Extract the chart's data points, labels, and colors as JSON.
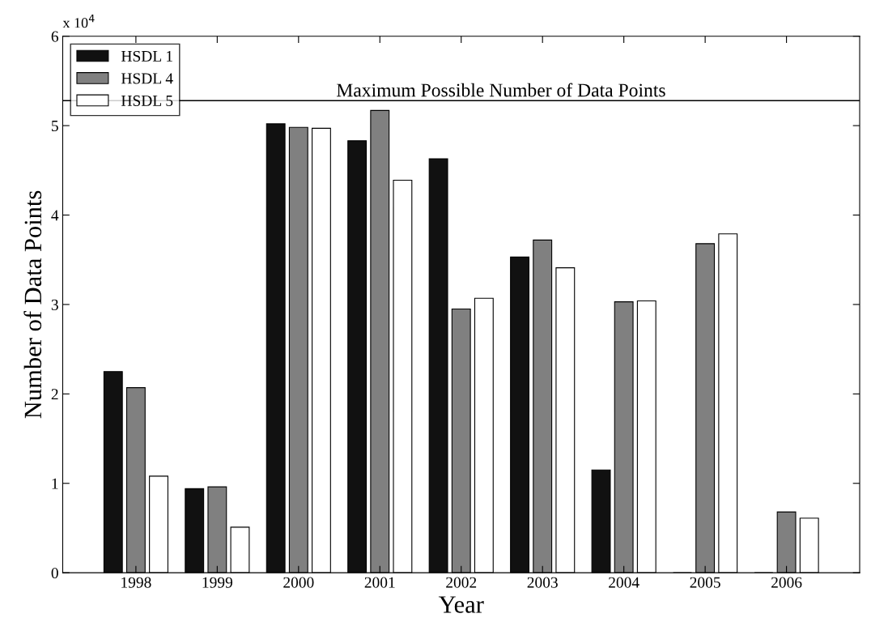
{
  "chart_data": {
    "type": "bar",
    "xlabel": "Year",
    "ylabel": "Number of Data Points",
    "categories": [
      "1998",
      "1999",
      "2000",
      "2001",
      "2002",
      "2003",
      "2004",
      "2005",
      "2006"
    ],
    "series": [
      {
        "name": "HSDL 1",
        "color": "#111111",
        "values": [
          2.25,
          0.94,
          5.02,
          4.83,
          4.63,
          3.53,
          1.15,
          0,
          0
        ]
      },
      {
        "name": "HSDL 4",
        "color": "#808080",
        "values": [
          2.07,
          0.96,
          4.98,
          5.17,
          2.95,
          3.72,
          3.03,
          3.68,
          0.68
        ]
      },
      {
        "name": "HSDL 5",
        "color": "#ffffff",
        "values": [
          1.08,
          0.51,
          4.97,
          4.39,
          3.07,
          3.41,
          3.04,
          3.79,
          0.61
        ]
      }
    ],
    "ylim": [
      0,
      6
    ],
    "yticks": [
      0,
      1,
      2,
      3,
      4,
      5,
      6
    ],
    "annotations": [
      "x 10$^{4}$"
    ],
    "ref_lines": [
      {
        "axis": "y",
        "value": 5.28,
        "label": "Maximum Possible Number of Data Points",
        "color": "#000000"
      }
    ],
    "legend": "top left",
    "grid": false
  }
}
